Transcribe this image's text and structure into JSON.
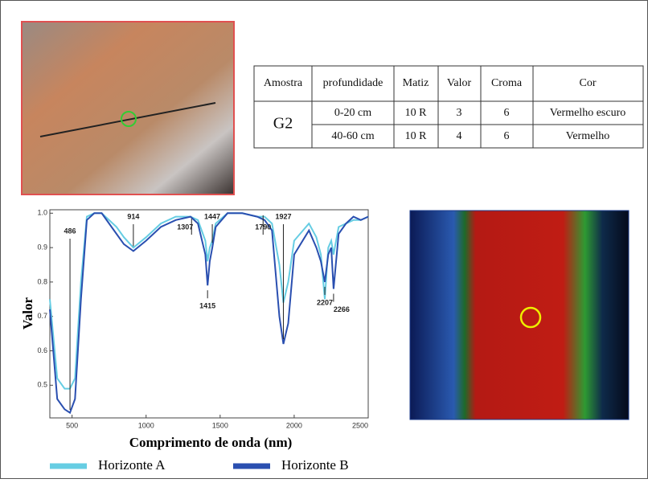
{
  "table": {
    "headers": [
      "Amostra",
      "profundidade",
      "Matiz",
      "Valor",
      "Croma",
      "Cor"
    ],
    "sample": "G2",
    "rows": [
      [
        "0-20 cm",
        "10 R",
        3,
        6,
        "Vermelho escuro"
      ],
      [
        "40-60 cm",
        "10 R",
        4,
        6,
        "Vermelho"
      ]
    ]
  },
  "chart_data": {
    "type": "line",
    "y_label": "Valor",
    "x_label": "Comprimento de onda (nm)",
    "x": [
      350,
      400,
      450,
      486,
      520,
      560,
      600,
      650,
      700,
      800,
      850,
      914,
      1000,
      1100,
      1200,
      1300,
      1350,
      1400,
      1415,
      1430,
      1447,
      1470,
      1550,
      1650,
      1750,
      1800,
      1850,
      1900,
      1927,
      1960,
      2000,
      2100,
      2150,
      2180,
      2207,
      2230,
      2250,
      2266,
      2300,
      2350,
      2400,
      2450,
      2500
    ],
    "series": [
      {
        "name": "Horizonte A",
        "color": "#66cde3",
        "values": [
          0.75,
          0.52,
          0.49,
          0.49,
          0.52,
          0.8,
          0.99,
          1.0,
          1.0,
          0.96,
          0.93,
          0.9,
          0.93,
          0.97,
          0.99,
          0.99,
          0.98,
          0.92,
          0.86,
          0.9,
          0.92,
          0.97,
          1.0,
          1.0,
          0.99,
          0.99,
          0.97,
          0.85,
          0.74,
          0.8,
          0.92,
          0.97,
          0.93,
          0.88,
          0.75,
          0.9,
          0.92,
          0.88,
          0.96,
          0.97,
          0.98,
          0.98,
          0.99
        ]
      },
      {
        "name": "Horizonte B",
        "color": "#2a4fb0",
        "values": [
          0.72,
          0.46,
          0.43,
          0.42,
          0.46,
          0.75,
          0.98,
          1.0,
          1.0,
          0.94,
          0.91,
          0.89,
          0.92,
          0.96,
          0.98,
          0.99,
          0.97,
          0.88,
          0.79,
          0.86,
          0.9,
          0.96,
          1.0,
          1.0,
          0.99,
          0.98,
          0.95,
          0.7,
          0.62,
          0.68,
          0.88,
          0.95,
          0.9,
          0.86,
          0.8,
          0.88,
          0.9,
          0.78,
          0.94,
          0.97,
          0.99,
          0.98,
          0.99
        ]
      }
    ],
    "markers": [
      486,
      914,
      1307,
      1415,
      1447,
      1790,
      1927,
      2207,
      2266
    ],
    "xlim": [
      350,
      2500
    ],
    "ylim": [
      0.405,
      1.01
    ],
    "xticks": [
      500,
      1000,
      1500,
      2000,
      2500
    ],
    "yticks": [
      0.5,
      0.6,
      0.7,
      0.8,
      0.9,
      {
        "value": 1.0,
        "label": "1.0"
      }
    ]
  }
}
